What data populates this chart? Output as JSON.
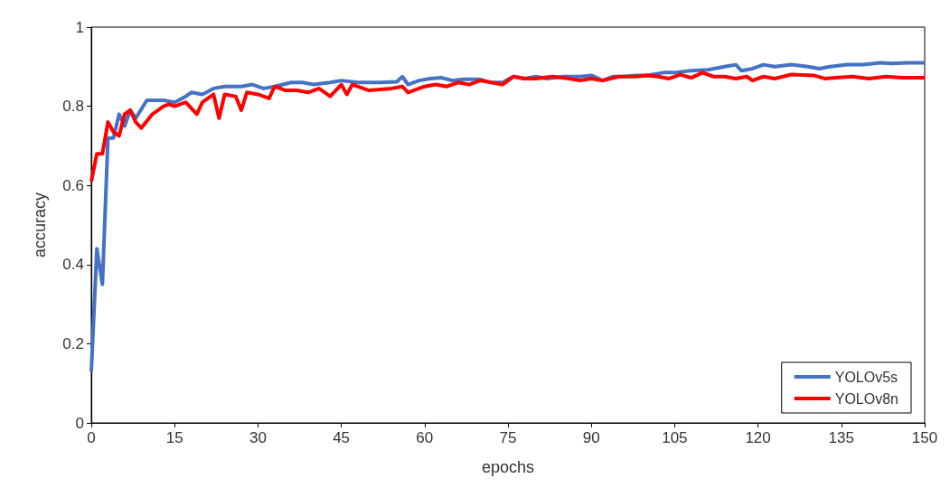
{
  "chart_data": {
    "type": "line",
    "xlabel": "epochs",
    "ylabel": "accuracy",
    "xlim": [
      0,
      150
    ],
    "xticks": [
      0,
      15,
      30,
      45,
      60,
      75,
      90,
      105,
      120,
      135,
      150
    ],
    "ylim": [
      0,
      1
    ],
    "yticks": [
      0,
      0.2,
      0.4,
      0.6,
      0.8,
      1
    ],
    "grid": false,
    "legend": "bottom right",
    "marker": "none",
    "line_style": "solid",
    "series": [
      {
        "name": "YOLOv5s",
        "color": "#4472c4",
        "x": [
          0,
          1,
          2,
          3,
          4,
          5,
          6,
          7,
          8,
          10,
          13,
          15,
          17,
          18,
          20,
          22,
          24,
          27,
          29,
          31,
          33,
          36,
          38,
          40,
          43,
          45,
          48,
          52,
          55,
          56,
          57,
          59,
          61,
          63,
          65,
          67,
          70,
          72,
          74,
          76,
          78,
          80,
          82,
          85,
          88,
          90,
          92,
          94,
          96,
          98,
          100,
          103,
          105,
          108,
          111,
          114,
          116,
          117,
          119,
          121,
          123,
          126,
          129,
          131,
          133,
          136,
          139,
          142,
          144,
          147,
          150
        ],
        "values": [
          0.13,
          0.44,
          0.35,
          0.72,
          0.72,
          0.78,
          0.75,
          0.79,
          0.77,
          0.815,
          0.815,
          0.81,
          0.825,
          0.835,
          0.83,
          0.845,
          0.85,
          0.85,
          0.855,
          0.845,
          0.85,
          0.86,
          0.86,
          0.855,
          0.86,
          0.865,
          0.86,
          0.86,
          0.862,
          0.875,
          0.855,
          0.865,
          0.87,
          0.872,
          0.865,
          0.868,
          0.868,
          0.86,
          0.86,
          0.875,
          0.87,
          0.875,
          0.87,
          0.875,
          0.875,
          0.878,
          0.865,
          0.875,
          0.875,
          0.878,
          0.878,
          0.885,
          0.885,
          0.89,
          0.892,
          0.9,
          0.905,
          0.89,
          0.895,
          0.905,
          0.9,
          0.905,
          0.9,
          0.895,
          0.9,
          0.905,
          0.905,
          0.91,
          0.908,
          0.91,
          0.91
        ]
      },
      {
        "name": "YOLOv8n",
        "color": "#ff0000",
        "x": [
          0,
          1,
          2,
          3,
          4,
          5,
          6,
          7,
          8,
          9,
          11,
          13,
          14,
          15,
          17,
          19,
          20,
          22,
          23,
          24,
          26,
          27,
          28,
          30,
          32,
          33,
          35,
          37,
          39,
          41,
          43,
          45,
          46,
          47,
          50,
          54,
          56,
          57,
          60,
          62,
          64,
          66,
          68,
          70,
          72,
          74,
          76,
          78,
          80,
          83,
          86,
          88,
          90,
          92,
          95,
          98,
          100,
          102,
          104,
          106,
          108,
          110,
          112,
          114,
          116,
          118,
          119,
          121,
          123,
          126,
          130,
          132,
          134,
          137,
          140,
          143,
          146,
          150
        ],
        "values": [
          0.61,
          0.68,
          0.68,
          0.76,
          0.735,
          0.725,
          0.78,
          0.79,
          0.76,
          0.745,
          0.78,
          0.8,
          0.805,
          0.8,
          0.81,
          0.78,
          0.81,
          0.83,
          0.77,
          0.83,
          0.825,
          0.79,
          0.835,
          0.83,
          0.82,
          0.85,
          0.84,
          0.84,
          0.835,
          0.845,
          0.825,
          0.855,
          0.83,
          0.855,
          0.84,
          0.845,
          0.85,
          0.835,
          0.85,
          0.855,
          0.85,
          0.86,
          0.855,
          0.865,
          0.86,
          0.855,
          0.875,
          0.87,
          0.87,
          0.875,
          0.87,
          0.865,
          0.87,
          0.865,
          0.875,
          0.875,
          0.878,
          0.875,
          0.87,
          0.88,
          0.872,
          0.885,
          0.875,
          0.875,
          0.87,
          0.875,
          0.865,
          0.875,
          0.87,
          0.88,
          0.878,
          0.87,
          0.872,
          0.875,
          0.87,
          0.875,
          0.872,
          0.872
        ]
      }
    ]
  }
}
